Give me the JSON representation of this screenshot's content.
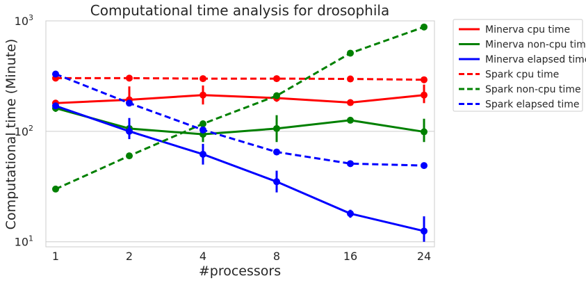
{
  "chart_data": {
    "type": "line",
    "title": "Computational time analysis for drosophila",
    "xlabel": "#processors",
    "ylabel": "Computational time (Minute)",
    "categories": [
      "1",
      "2",
      "4",
      "8",
      "16",
      "24"
    ],
    "yscale": "log",
    "ylim": [
      9,
      1000
    ],
    "yticks": [
      {
        "value": 10,
        "base": "10",
        "exp": "1"
      },
      {
        "value": 100,
        "base": "10",
        "exp": "2"
      },
      {
        "value": 1000,
        "base": "10",
        "exp": "3"
      }
    ],
    "grid": true,
    "legend_position": "outside-right",
    "series": [
      {
        "name": "Minerva cpu time",
        "color": "#ff0000",
        "dash": "solid",
        "values": [
          180,
          193,
          213,
          200,
          182,
          213
        ],
        "err_low": [
          170,
          175,
          175,
          185,
          172,
          180
        ],
        "err_high": [
          190,
          255,
          260,
          215,
          192,
          265
        ]
      },
      {
        "name": "Minerva non-cpu time",
        "color": "#008000",
        "dash": "solid",
        "values": [
          162,
          106,
          94,
          106,
          126,
          99
        ],
        "err_low": [
          150,
          90,
          80,
          80,
          118,
          80
        ],
        "err_high": [
          175,
          120,
          110,
          140,
          134,
          130
        ]
      },
      {
        "name": "Minerva elapsed time",
        "color": "#0000ff",
        "dash": "solid",
        "values": [
          170,
          100,
          62,
          35,
          18,
          12.5
        ],
        "err_low": [
          160,
          85,
          50,
          28,
          16.5,
          10
        ],
        "err_high": [
          180,
          132,
          77,
          44,
          19.5,
          17
        ]
      },
      {
        "name": "Spark cpu time",
        "color": "#ff0000",
        "dash": "dashed",
        "values": [
          303,
          303,
          300,
          300,
          298,
          293
        ]
      },
      {
        "name": "Spark non-cpu time",
        "color": "#008000",
        "dash": "dashed",
        "values": [
          30,
          60,
          117,
          210,
          510,
          880
        ]
      },
      {
        "name": "Spark elapsed time",
        "color": "#0000ff",
        "dash": "dashed",
        "values": [
          330,
          180,
          103,
          65,
          51,
          49
        ]
      }
    ]
  }
}
